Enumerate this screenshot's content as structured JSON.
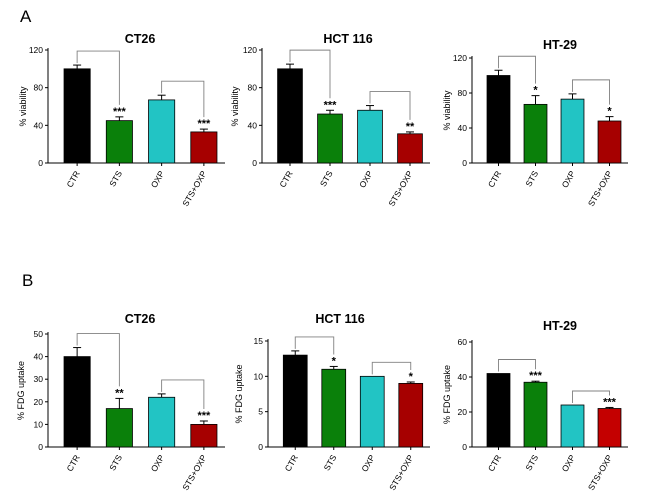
{
  "panels": [
    {
      "letter": "A"
    },
    {
      "letter": "B"
    }
  ],
  "colors": {
    "CTR": "#000000",
    "STS": "#0a800a",
    "OXP": "#22c4c4",
    "STS+OXP": "#a60000",
    "STS+OXP_alt": "#c40000"
  },
  "chart_data": [
    {
      "type": "bar",
      "panel": "A",
      "title": "CT26",
      "xlabel": "",
      "ylabel": "% viability",
      "categories": [
        "CTR",
        "STS",
        "OXP",
        "STS+OXP"
      ],
      "values": [
        100,
        45,
        67,
        33
      ],
      "errors": [
        4,
        4,
        5,
        3
      ],
      "significance": [
        "",
        "***",
        "",
        "***"
      ],
      "ylim": [
        0,
        120
      ],
      "yticks": [
        0,
        40,
        80,
        120
      ],
      "comparisons": [
        [
          "CTR",
          "STS"
        ],
        [
          "OXP",
          "STS+OXP"
        ]
      ]
    },
    {
      "type": "bar",
      "panel": "A",
      "title": "HCT 116",
      "xlabel": "",
      "ylabel": "% viability",
      "categories": [
        "CTR",
        "STS",
        "OXP",
        "STS+OXP"
      ],
      "values": [
        100,
        52,
        56,
        31
      ],
      "errors": [
        5,
        4,
        5,
        2
      ],
      "significance": [
        "",
        "***",
        "",
        "**"
      ],
      "ylim": [
        0,
        120
      ],
      "yticks": [
        0,
        40,
        80,
        120
      ],
      "comparisons": [
        [
          "CTR",
          "STS"
        ],
        [
          "OXP",
          "STS+OXP"
        ]
      ]
    },
    {
      "type": "bar",
      "panel": "A",
      "title": "HT-29",
      "xlabel": "",
      "ylabel": "% viability",
      "categories": [
        "CTR",
        "STS",
        "OXP",
        "STS+OXP"
      ],
      "values": [
        100,
        67,
        73,
        48
      ],
      "errors": [
        6,
        10,
        6,
        5
      ],
      "significance": [
        "",
        "*",
        "",
        "*"
      ],
      "ylim": [
        0,
        120
      ],
      "yticks": [
        0,
        40,
        80,
        120
      ],
      "comparisons": [
        [
          "CTR",
          "STS"
        ],
        [
          "OXP",
          "STS+OXP"
        ]
      ]
    },
    {
      "type": "bar",
      "panel": "B",
      "title": "CT26",
      "xlabel": "",
      "ylabel": "% FDG uptake",
      "categories": [
        "CTR",
        "STS",
        "OXP",
        "STS+OXP"
      ],
      "values": [
        40,
        17,
        22,
        10
      ],
      "errors": [
        4,
        4.5,
        1.5,
        1.5
      ],
      "significance": [
        "",
        "**",
        "",
        "***"
      ],
      "ylim": [
        0,
        50
      ],
      "yticks": [
        0,
        10,
        20,
        30,
        40,
        50
      ],
      "comparisons": [
        [
          "CTR",
          "STS"
        ],
        [
          "OXP",
          "STS+OXP"
        ]
      ]
    },
    {
      "type": "bar",
      "panel": "B",
      "title": "HCT 116",
      "xlabel": "",
      "ylabel": "% FDG uptake",
      "categories": [
        "CTR",
        "STS",
        "OXP",
        "STS+OXP"
      ],
      "values": [
        13,
        11,
        10,
        9
      ],
      "errors": [
        0.6,
        0.4,
        0,
        0.2
      ],
      "significance": [
        "",
        "*",
        "",
        "*"
      ],
      "ylim": [
        0,
        15
      ],
      "yticks": [
        0,
        5,
        10,
        15
      ],
      "comparisons": [
        [
          "CTR",
          "STS"
        ],
        [
          "OXP",
          "STS+OXP"
        ]
      ]
    },
    {
      "type": "bar",
      "panel": "B",
      "title": "HT-29",
      "xlabel": "",
      "ylabel": "% FDG uptake",
      "categories": [
        "CTR",
        "STS",
        "OXP",
        "STS+OXP"
      ],
      "values": [
        42,
        37,
        24,
        22
      ],
      "errors": [
        0,
        0.6,
        0,
        0.6
      ],
      "significance": [
        "",
        "***",
        "",
        "***"
      ],
      "ylim": [
        0,
        60
      ],
      "yticks": [
        0,
        20,
        40,
        60
      ],
      "comparisons": [
        [
          "CTR",
          "STS"
        ],
        [
          "OXP",
          "STS+OXP"
        ]
      ],
      "alt_last_color": true
    }
  ]
}
